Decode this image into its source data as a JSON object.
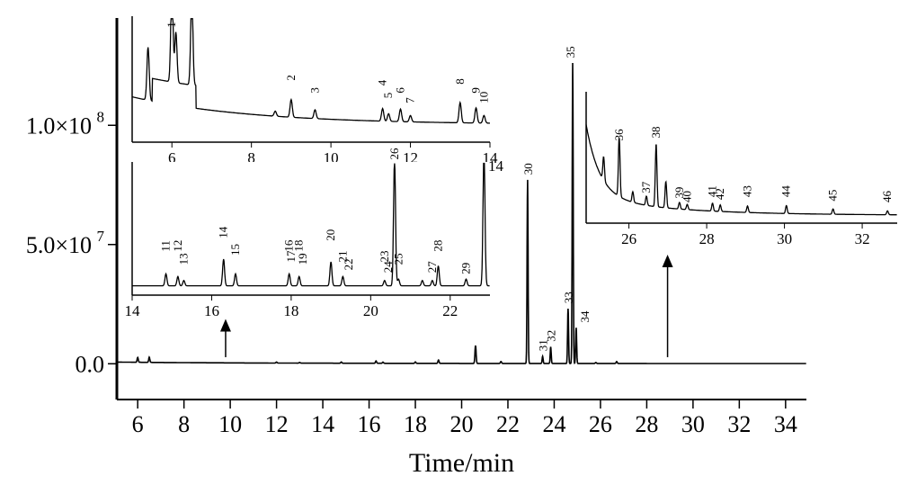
{
  "chart_data": [
    {
      "panel": "main",
      "type": "line",
      "xlabel": "Time/min",
      "ylabel": "",
      "xlim": [
        5.1,
        34.9
      ],
      "ylim": [
        -15000000.0,
        145000000.0
      ],
      "x_ticks": [
        6,
        8,
        10,
        12,
        14,
        16,
        18,
        20,
        22,
        24,
        26,
        28,
        30,
        32,
        34
      ],
      "x_tick_labels": [
        "6",
        "8",
        "10",
        "12",
        "14",
        "16",
        "18",
        "20",
        "22",
        "24",
        "26",
        "28",
        "30",
        "32",
        "34"
      ],
      "y_ticks": [
        0,
        50000000,
        100000000
      ],
      "y_tick_labels": [
        "0.0",
        "5.0×10",
        "1.0×10"
      ],
      "y_tick_exponents": [
        "",
        "7",
        "8"
      ],
      "peaks": [
        {
          "label": "30",
          "x": 22.85,
          "y": 77000000
        },
        {
          "label": "31",
          "x": 23.5,
          "y": 3000000
        },
        {
          "label": "32",
          "x": 23.85,
          "y": 7000000
        },
        {
          "label": "33",
          "x": 24.6,
          "y": 23000000
        },
        {
          "label": "34",
          "x": 24.95,
          "y": 15000000
        },
        {
          "label": "35",
          "x": 24.8,
          "y": 126000000
        }
      ],
      "arrows": [
        {
          "x": 9.8,
          "from_y": 2000000,
          "to_y": 18000000
        },
        {
          "x": 28.9,
          "from_y": 2000000,
          "to_y": 45000000
        }
      ]
    },
    {
      "panel": "inset-top",
      "type": "line",
      "xlim": [
        5.0,
        14.0
      ],
      "x_ticks": [
        6,
        8,
        10,
        12,
        14
      ],
      "x_tick_labels": [
        "6",
        "8",
        "10",
        "12",
        "14"
      ],
      "peaks": [
        {
          "label": "1",
          "x": 6.0
        },
        {
          "label": "2",
          "x": 9.0
        },
        {
          "label": "3",
          "x": 9.6
        },
        {
          "label": "4",
          "x": 11.3
        },
        {
          "label": "5",
          "x": 11.45
        },
        {
          "label": "6",
          "x": 11.75
        },
        {
          "label": "7",
          "x": 12.0
        },
        {
          "label": "8",
          "x": 13.25
        },
        {
          "label": "9",
          "x": 13.65
        },
        {
          "label": "10",
          "x": 13.85
        }
      ]
    },
    {
      "panel": "inset-middle",
      "type": "line",
      "xlim": [
        14.0,
        23.0
      ],
      "x_ticks": [
        14,
        16,
        18,
        20,
        22
      ],
      "x_tick_labels": [
        "14",
        "16",
        "18",
        "20",
        "22"
      ],
      "peaks": [
        {
          "label": "11",
          "x": 14.85
        },
        {
          "label": "12",
          "x": 15.15
        },
        {
          "label": "13",
          "x": 15.3
        },
        {
          "label": "14",
          "x": 16.3
        },
        {
          "label": "15",
          "x": 16.6
        },
        {
          "label": "16",
          "x": 17.95
        },
        {
          "label": "17",
          "x": 18.0
        },
        {
          "label": "18",
          "x": 18.2
        },
        {
          "label": "19",
          "x": 18.3
        },
        {
          "label": "20",
          "x": 19.0
        },
        {
          "label": "21",
          "x": 19.3
        },
        {
          "label": "22",
          "x": 19.45
        },
        {
          "label": "23",
          "x": 20.35
        },
        {
          "label": "24",
          "x": 20.45
        },
        {
          "label": "25",
          "x": 20.7
        },
        {
          "label": "26",
          "x": 20.6
        },
        {
          "label": "27",
          "x": 21.55
        },
        {
          "label": "28",
          "x": 21.7
        },
        {
          "label": "29",
          "x": 22.4
        }
      ],
      "right_edge_label": "14"
    },
    {
      "panel": "inset-right",
      "type": "line",
      "xlim": [
        24.9,
        32.9
      ],
      "x_ticks": [
        26,
        28,
        30,
        32
      ],
      "x_tick_labels": [
        "26",
        "28",
        "30",
        "32"
      ],
      "peaks": [
        {
          "label": "36",
          "x": 25.75
        },
        {
          "label": "37",
          "x": 26.45
        },
        {
          "label": "38",
          "x": 26.7
        },
        {
          "label": "39",
          "x": 27.3
        },
        {
          "label": "40",
          "x": 27.5
        },
        {
          "label": "41",
          "x": 28.15
        },
        {
          "label": "42",
          "x": 28.35
        },
        {
          "label": "43",
          "x": 29.05
        },
        {
          "label": "44",
          "x": 30.05
        },
        {
          "label": "45",
          "x": 31.25
        },
        {
          "label": "46",
          "x": 32.65
        }
      ]
    }
  ]
}
